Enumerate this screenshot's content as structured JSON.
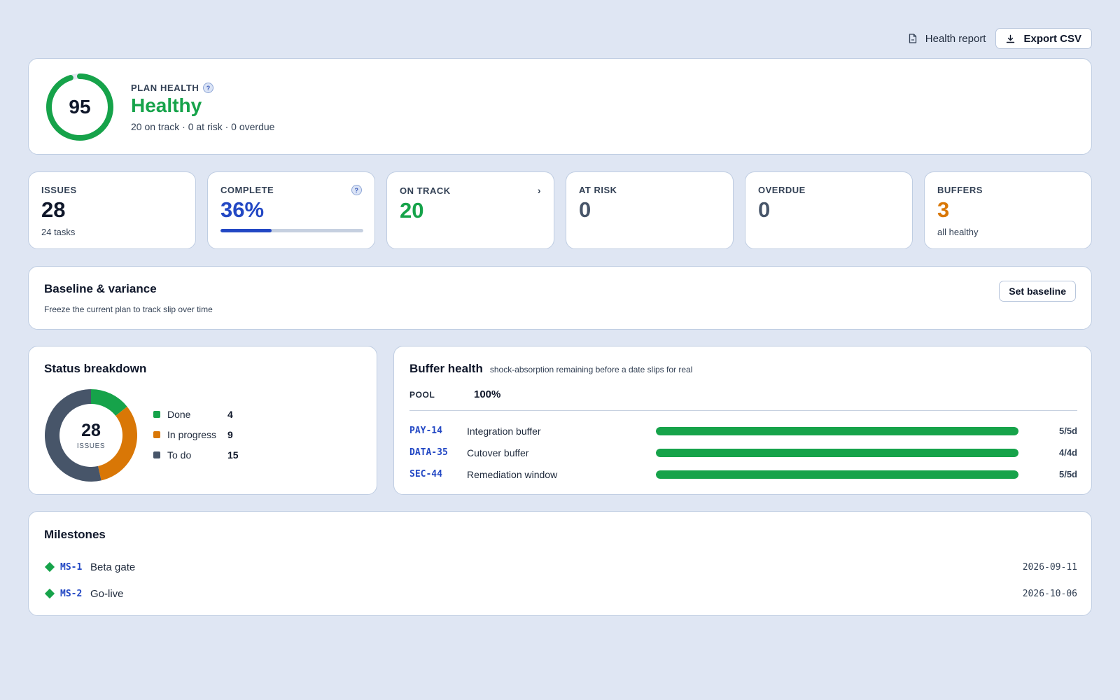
{
  "toolbar": {
    "health_report_label": "Health report",
    "export_label": "Export CSV",
    "health_report_icon": "document-icon",
    "export_icon": "download-icon"
  },
  "plan_health": {
    "score": "95",
    "score_fraction": 0.95,
    "label": "PLAN HEALTH",
    "help": "?",
    "status": "Healthy",
    "summary": "20 on track · 0 at risk · 0 overdue",
    "color": "#16a34a"
  },
  "stats": {
    "issues": {
      "label": "ISSUES",
      "value": "28",
      "sub": "24 tasks",
      "color": "#0f172a"
    },
    "complete": {
      "label": "COMPLETE",
      "value": "36%",
      "progress": 0.36,
      "help": "?",
      "color": "#2348c4"
    },
    "on_track": {
      "label": "ON TRACK",
      "value": "20",
      "chevron": "›",
      "color": "#16a34a"
    },
    "at_risk": {
      "label": "AT RISK",
      "value": "0",
      "color": "#475569"
    },
    "overdue": {
      "label": "OVERDUE",
      "value": "0",
      "color": "#475569"
    },
    "buffers": {
      "label": "BUFFERS",
      "value": "3",
      "sub": "all healthy",
      "color": "#d97706"
    }
  },
  "baseline": {
    "title": "Baseline & variance",
    "description": "Freeze the current plan to track slip over time",
    "button_label": "Set baseline"
  },
  "status_breakdown": {
    "title": "Status breakdown",
    "total": "28",
    "total_label": "ISSUES",
    "items": [
      {
        "name": "Done",
        "count": 4,
        "color": "#16a34a"
      },
      {
        "name": "In progress",
        "count": 9,
        "color": "#d97706"
      },
      {
        "name": "To do",
        "count": 15,
        "color": "#475569"
      }
    ]
  },
  "buffer_health": {
    "title": "Buffer health",
    "subtitle": "shock-absorption remaining before a date slips for real",
    "pool_label": "POOL",
    "pool_value": "100%",
    "rows": [
      {
        "key": "PAY-14",
        "name": "Integration buffer",
        "remaining": 1.0,
        "value": "5/5d"
      },
      {
        "key": "DATA-35",
        "name": "Cutover buffer",
        "remaining": 1.0,
        "value": "4/4d"
      },
      {
        "key": "SEC-44",
        "name": "Remediation window",
        "remaining": 1.0,
        "value": "5/5d"
      }
    ]
  },
  "milestones": {
    "title": "Milestones",
    "items": [
      {
        "key": "MS-1",
        "name": "Beta gate",
        "date": "2026-09-11"
      },
      {
        "key": "MS-2",
        "name": "Go-live",
        "date": "2026-10-06"
      }
    ]
  }
}
